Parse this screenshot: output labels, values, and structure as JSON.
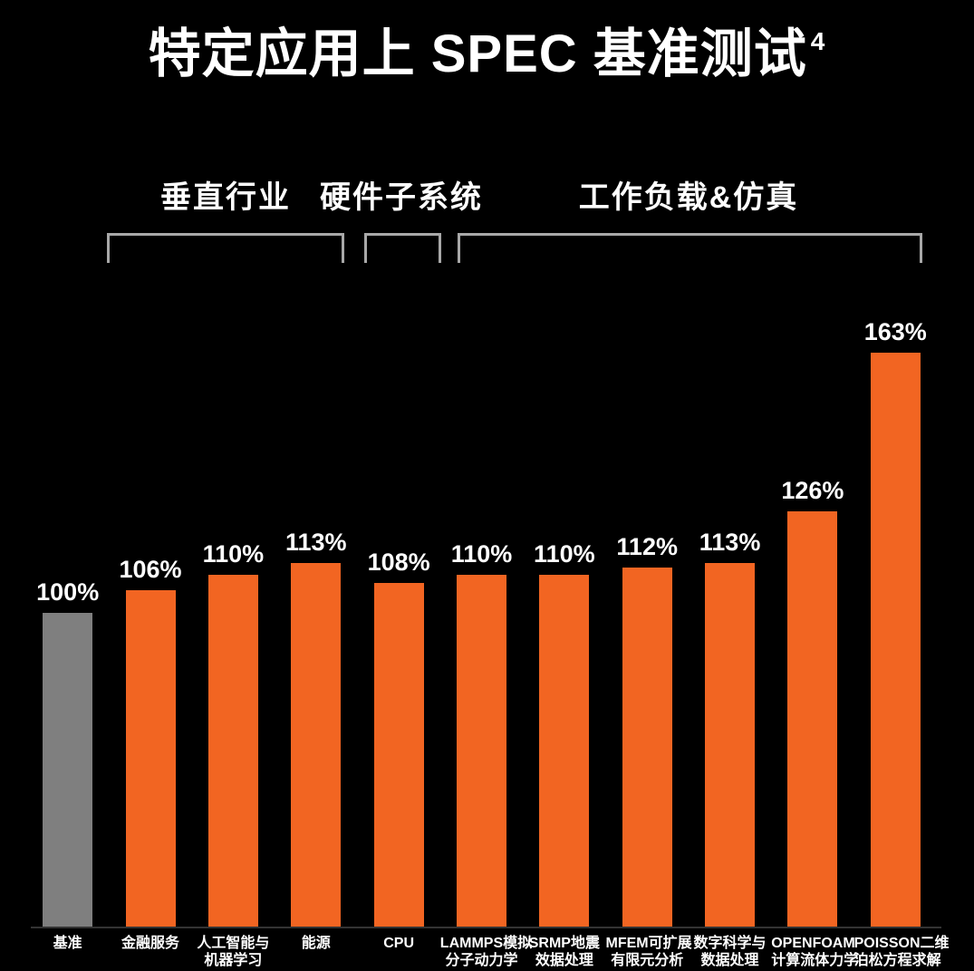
{
  "title": {
    "text": "特定应用上 SPEC 基准测试",
    "superscript": "4"
  },
  "groups": [
    {
      "label": "垂直行业",
      "bars_from": 1,
      "bars_to": 3
    },
    {
      "label": "硬件子系统",
      "bars_from": 4,
      "bars_to": 4
    },
    {
      "label": "工作负载&仿真",
      "bars_from": 5,
      "bars_to": 10
    }
  ],
  "colors": {
    "background": "#000000",
    "bar": "#F26522",
    "baseline_bar": "#7F7F7F",
    "bracket_line": "#A8A8A8",
    "text": "#FFFFFF",
    "axis_line": "#333333"
  },
  "chart_data": {
    "type": "bar",
    "title": "特定应用上 SPEC 基准测试⁴",
    "unit": "%",
    "baseline_value": 100,
    "baseline_index": 0,
    "legend": "none",
    "grid": false,
    "categories": [
      "基准",
      "金融服务",
      "人工智能与\n机器学习",
      "能源",
      "CPU",
      "LAMMPS模拟\n分子动力学",
      "SRMP地震\n效据处理",
      "MFEM可扩展\n有限元分析",
      "数字科学与\n数据处理",
      "OPENFOAM\n计算流体力学",
      "POISSON二维\n泊松方程求解"
    ],
    "values": [
      100,
      106,
      110,
      113,
      108,
      110,
      110,
      112,
      113,
      126,
      163
    ],
    "value_labels": [
      "100%",
      "106%",
      "110%",
      "113%",
      "108%",
      "110%",
      "110%",
      "112%",
      "113%",
      "126%",
      "163%"
    ]
  }
}
